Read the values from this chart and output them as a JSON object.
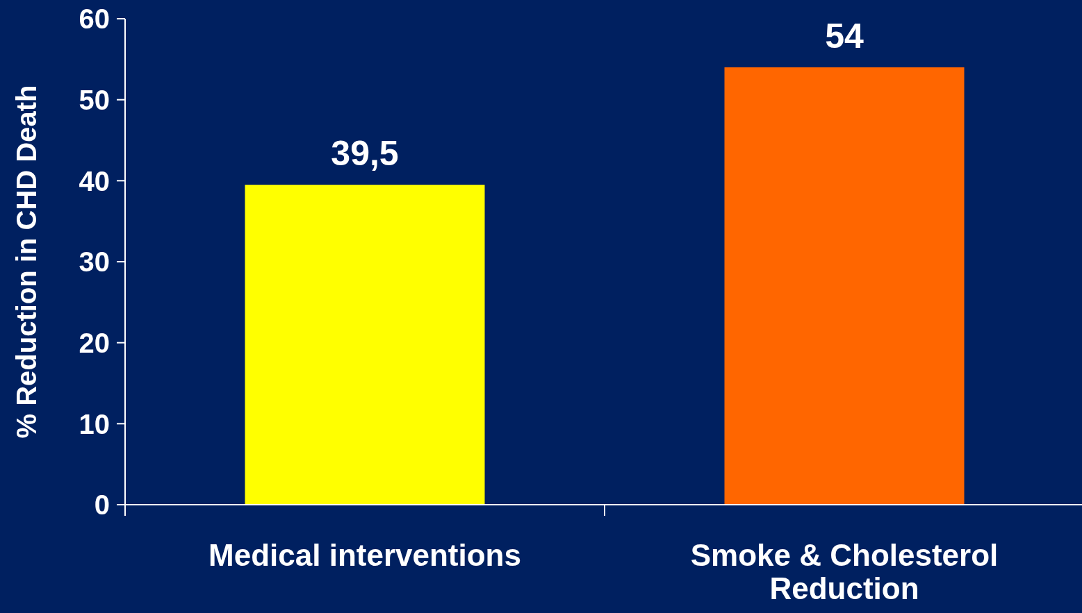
{
  "chart_data": {
    "type": "bar",
    "ylabel": "% Reduction in CHD Death",
    "categories": [
      "Medical interventions",
      "Smoke & Cholesterol Reduction"
    ],
    "values": [
      39.5,
      54
    ],
    "colors": [
      "#ffff00",
      "#ff6600"
    ],
    "value_labels": [
      "39,5",
      "54"
    ],
    "ylim": [
      0,
      60
    ],
    "yticks": [
      0,
      10,
      20,
      30,
      40,
      50,
      60
    ],
    "grid": false
  }
}
